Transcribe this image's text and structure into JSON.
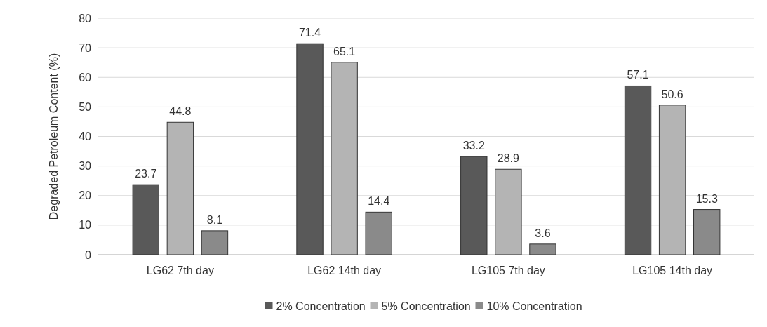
{
  "chart_data": {
    "type": "bar",
    "ylabel": "Degraded Petroleum Content  (%)",
    "categories": [
      "LG62 7th day",
      "LG62 14th day",
      "LG105 7th day",
      "LG105 14th day"
    ],
    "series": [
      {
        "name": "2% Concentration",
        "color": "#595959",
        "values": [
          23.7,
          71.4,
          33.2,
          57.1
        ]
      },
      {
        "name": "5% Concentration",
        "color": "#b4b4b4",
        "values": [
          44.8,
          65.1,
          28.9,
          50.6
        ]
      },
      {
        "name": "10% Concentration",
        "color": "#8a8a8a",
        "values": [
          8.1,
          14.4,
          3.6,
          15.3
        ]
      }
    ],
    "ylim": [
      0,
      80
    ],
    "yticks": [
      0,
      10,
      20,
      30,
      40,
      50,
      60,
      70,
      80
    ],
    "grid": "y",
    "legend": "bottom",
    "data_labels": true
  }
}
